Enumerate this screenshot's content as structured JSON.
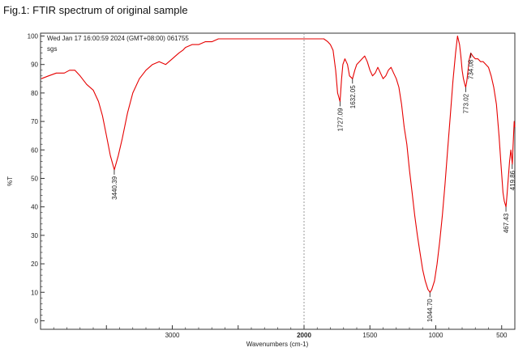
{
  "caption": "Fig.1: FTIR spectrum of original sample",
  "chart_data": {
    "type": "line",
    "header": "Wed Jan 17 16:00:59 2024 (GMT+08:00)  061755",
    "subheader": "sgs",
    "xlabel": "Wavenumbers (cm-1)",
    "ylabel": "%T",
    "xlim": [
      4000,
      400
    ],
    "ylim": [
      -3,
      101
    ],
    "x_reversed": true,
    "grid": false,
    "x_ticks": [
      {
        "value": 3000,
        "label": "3000"
      },
      {
        "value": 2000,
        "label": "2000"
      },
      {
        "value": 1500,
        "label": "1500"
      },
      {
        "value": 1000,
        "label": "1000"
      },
      {
        "value": 500,
        "label": "500"
      }
    ],
    "y_ticks": [
      {
        "value": 0,
        "label": "0"
      },
      {
        "value": 10,
        "label": "10"
      },
      {
        "value": 20,
        "label": "20"
      },
      {
        "value": 30,
        "label": "30"
      },
      {
        "value": 40,
        "label": "40"
      },
      {
        "value": 50,
        "label": "50"
      },
      {
        "value": 60,
        "label": "60"
      },
      {
        "value": 70,
        "label": "70"
      },
      {
        "value": 80,
        "label": "80"
      },
      {
        "value": 90,
        "label": "90"
      },
      {
        "value": 100,
        "label": "100"
      }
    ],
    "divider_at": 2000,
    "series": [
      {
        "color": "#e60000",
        "x": [
          3995,
          3940,
          3880,
          3820,
          3780,
          3740,
          3700,
          3650,
          3600,
          3560,
          3530,
          3500,
          3470,
          3440,
          3410,
          3380,
          3340,
          3300,
          3250,
          3200,
          3150,
          3100,
          3050,
          3000,
          2950,
          2920,
          2900,
          2850,
          2800,
          2750,
          2700,
          2650,
          2600,
          2550,
          2500,
          2400,
          2300,
          2200,
          2100,
          2000,
          1900,
          1850,
          1820,
          1800,
          1780,
          1760,
          1745,
          1727,
          1715,
          1705,
          1690,
          1670,
          1655,
          1632,
          1615,
          1600,
          1580,
          1560,
          1540,
          1520,
          1500,
          1480,
          1460,
          1440,
          1420,
          1400,
          1380,
          1360,
          1340,
          1320,
          1300,
          1280,
          1260,
          1240,
          1220,
          1200,
          1180,
          1160,
          1140,
          1120,
          1100,
          1080,
          1060,
          1044,
          1030,
          1010,
          990,
          970,
          950,
          930,
          910,
          890,
          870,
          850,
          835,
          820,
          810,
          800,
          790,
          780,
          773,
          765,
          755,
          745,
          734,
          720,
          700,
          680,
          660,
          640,
          620,
          600,
          580,
          560,
          540,
          520,
          505,
          490,
          480,
          467,
          460,
          450,
          440,
          430,
          425,
          419,
          415,
          410,
          405,
          400
        ],
        "y": [
          85,
          86,
          87,
          87,
          88,
          88,
          86,
          83,
          81,
          77,
          72,
          65,
          58,
          53,
          58,
          64,
          73,
          80,
          85,
          88,
          90,
          91,
          90,
          92,
          94,
          95,
          96,
          97,
          97,
          98,
          98,
          99,
          99,
          99,
          99,
          99,
          99,
          99,
          99,
          99,
          99,
          99,
          98,
          97,
          95,
          88,
          80,
          77,
          85,
          90,
          92,
          90,
          86,
          85,
          88,
          90,
          91,
          92,
          93,
          91,
          88,
          86,
          87,
          89,
          87,
          85,
          86,
          88,
          89,
          87,
          85,
          82,
          76,
          68,
          62,
          53,
          45,
          37,
          30,
          24,
          18,
          14,
          11,
          10,
          11,
          14,
          20,
          28,
          37,
          48,
          60,
          72,
          84,
          94,
          100,
          97,
          93,
          88,
          85,
          83,
          82,
          84,
          88,
          92,
          94,
          93,
          92,
          92,
          91,
          91,
          90,
          89,
          86,
          82,
          76,
          65,
          55,
          45,
          42,
          40,
          44,
          50,
          56,
          60,
          58,
          55,
          60,
          65,
          70,
          68
        ]
      }
    ],
    "annotations": [
      {
        "x": 3440.39,
        "y": 53,
        "label": "3440.39"
      },
      {
        "x": 1727.09,
        "y": 77,
        "label": "1727.09"
      },
      {
        "x": 1632.05,
        "y": 85,
        "label": "1632.05"
      },
      {
        "x": 1044.7,
        "y": 10,
        "label": "1044.70"
      },
      {
        "x": 773.02,
        "y": 82,
        "label": "773.02"
      },
      {
        "x": 734.08,
        "y": 94,
        "label": "734.08"
      },
      {
        "x": 467.43,
        "y": 40,
        "label": "467.43"
      },
      {
        "x": 419.86,
        "y": 55,
        "label": "419.86"
      }
    ]
  }
}
